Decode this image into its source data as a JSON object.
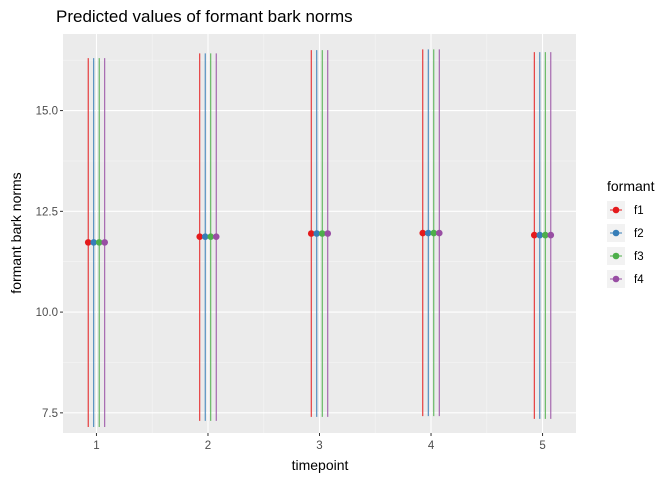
{
  "chart_data": {
    "type": "scatter",
    "title": "Predicted values of formant bark norms",
    "xlabel": "timepoint",
    "ylabel": "formant bark norms",
    "x": [
      1,
      2,
      3,
      4,
      5
    ],
    "x_ticks": [
      "1",
      "2",
      "3",
      "4",
      "5"
    ],
    "y_ticks": [
      "7.5",
      "10.0",
      "12.5",
      "15.0"
    ],
    "xlim": [
      0.7,
      5.3
    ],
    "ylim": [
      7.0,
      16.9
    ],
    "grid": true,
    "legend": {
      "title": "formant",
      "position": "right"
    },
    "series": [
      {
        "name": "f1",
        "color": "#e41a1c",
        "values": [
          11.73,
          11.87,
          11.95,
          11.96,
          11.91
        ],
        "lower": [
          7.15,
          7.3,
          7.4,
          7.42,
          7.35
        ],
        "upper": [
          16.3,
          16.42,
          16.5,
          16.52,
          16.45
        ]
      },
      {
        "name": "f2",
        "color": "#377eb8",
        "values": [
          11.73,
          11.87,
          11.95,
          11.96,
          11.91
        ],
        "lower": [
          7.15,
          7.3,
          7.4,
          7.42,
          7.35
        ],
        "upper": [
          16.3,
          16.42,
          16.5,
          16.52,
          16.45
        ]
      },
      {
        "name": "f3",
        "color": "#4daf4a",
        "values": [
          11.73,
          11.87,
          11.95,
          11.96,
          11.91
        ],
        "lower": [
          7.15,
          7.3,
          7.4,
          7.42,
          7.35
        ],
        "upper": [
          16.3,
          16.42,
          16.5,
          16.52,
          16.45
        ]
      },
      {
        "name": "f4",
        "color": "#984ea3",
        "values": [
          11.73,
          11.87,
          11.95,
          11.96,
          11.91
        ],
        "lower": [
          7.15,
          7.3,
          7.4,
          7.42,
          7.35
        ],
        "upper": [
          16.3,
          16.42,
          16.5,
          16.52,
          16.45
        ]
      }
    ]
  }
}
